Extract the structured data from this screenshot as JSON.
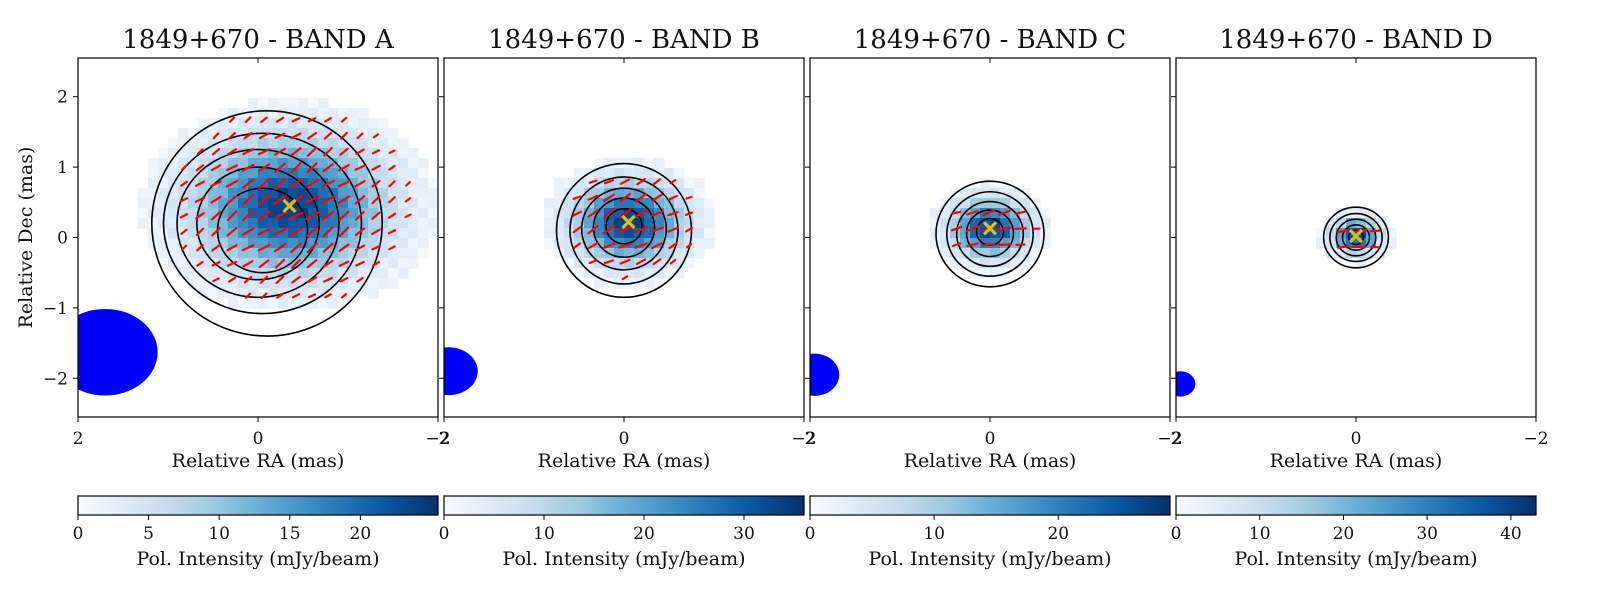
{
  "figure": {
    "colormap": [
      "#f7fbff",
      "#deebf7",
      "#c6dbef",
      "#9ecae1",
      "#6baed6",
      "#4292c6",
      "#2171b5",
      "#08519c",
      "#08306b"
    ],
    "contour_color": "#000000",
    "evpa_color": "#ff0000",
    "marker_color": "#d4c21a",
    "beam_color": "#0000ff"
  },
  "chart_data": [
    {
      "type": "heatmap",
      "title": "1849+670 - BAND A",
      "xlabel": "Relative RA (mas)",
      "ylabel": "Relative Dec (mas)",
      "xlim": [
        2.0,
        -2.0
      ],
      "ylim": [
        -2.55,
        2.55
      ],
      "xticks": [
        2,
        0,
        -2
      ],
      "xtick_labels": [
        "2",
        "0",
        "−2"
      ],
      "yticks": [
        2,
        1,
        0,
        -1,
        -2
      ],
      "ytick_labels": [
        "2",
        "1",
        "0",
        "−1",
        "−2"
      ],
      "colorbar": {
        "label": "Pol. Intensity (mJy/beam)",
        "range": [
          0,
          25.5
        ],
        "ticks": [
          0,
          5,
          10,
          15,
          20
        ],
        "tick_labels": [
          "0",
          "5",
          "10",
          "15",
          "20"
        ]
      },
      "peak": {
        "ra": -0.35,
        "dec": 0.45,
        "value_mjy": 24
      },
      "core_marker": {
        "ra": -0.35,
        "dec": 0.45
      },
      "emission_sigma": {
        "ra": 0.68,
        "dec": 0.62
      },
      "contours": [
        {
          "center": [
            -0.1,
            0.2
          ],
          "radius_ra": 1.28,
          "radius_dec": 1.6
        },
        {
          "center": [
            -0.05,
            0.2
          ],
          "radius_ra": 1.1,
          "radius_dec": 1.28
        },
        {
          "center": [
            0.0,
            0.2
          ],
          "radius_ra": 0.9,
          "radius_dec": 1.05
        },
        {
          "center": [
            0.0,
            0.2
          ],
          "radius_ra": 0.68,
          "radius_dec": 0.8
        },
        {
          "center": [
            -0.05,
            0.1
          ],
          "radius_ra": 0.5,
          "radius_dec": 0.6
        }
      ],
      "evpa_angle_deg": 35,
      "evpa_extent": {
        "ra": 1.35,
        "dec": 1.45
      },
      "beam": {
        "ra": 1.7,
        "dec": -1.63,
        "major": 1.23,
        "minor": 1.17
      }
    },
    {
      "type": "heatmap",
      "title": "1849+670 - BAND B",
      "xlabel": "Relative RA (mas)",
      "xlim": [
        2.0,
        -2.0
      ],
      "ylim": [
        -2.55,
        2.55
      ],
      "xticks": [
        2,
        0,
        -2
      ],
      "xtick_labels": [
        "2",
        "0",
        "−2"
      ],
      "colorbar": {
        "label": "Pol. Intensity (mJy/beam)",
        "range": [
          0,
          36
        ],
        "ticks": [
          0,
          10,
          20,
          30
        ],
        "tick_labels": [
          "0",
          "10",
          "20",
          "30"
        ]
      },
      "peak": {
        "ra": -0.05,
        "dec": 0.22,
        "value_mjy": 35
      },
      "core_marker": {
        "ra": -0.05,
        "dec": 0.22
      },
      "emission_sigma": {
        "ra": 0.4,
        "dec": 0.38
      },
      "contours": [
        {
          "center": [
            0.0,
            0.1
          ],
          "radius_ra": 0.75,
          "radius_dec": 0.95
        },
        {
          "center": [
            0.0,
            0.1
          ],
          "radius_ra": 0.6,
          "radius_dec": 0.76
        },
        {
          "center": [
            0.0,
            0.12
          ],
          "radius_ra": 0.47,
          "radius_dec": 0.58
        },
        {
          "center": [
            0.0,
            0.14
          ],
          "radius_ra": 0.34,
          "radius_dec": 0.42
        },
        {
          "center": [
            0.0,
            0.16
          ],
          "radius_ra": 0.2,
          "radius_dec": 0.25
        }
      ],
      "evpa_angle_deg": 28,
      "evpa_extent": {
        "ra": 0.75,
        "dec": 0.8
      },
      "beam": {
        "ra": 1.95,
        "dec": -1.9,
        "major": 0.68,
        "minor": 0.65
      }
    },
    {
      "type": "heatmap",
      "title": "1849+670 - BAND C",
      "xlabel": "Relative RA (mas)",
      "xlim": [
        2.0,
        -2.0
      ],
      "ylim": [
        -2.55,
        2.55
      ],
      "xticks": [
        2,
        0,
        -2
      ],
      "xtick_labels": [
        "2",
        "0",
        "−2"
      ],
      "colorbar": {
        "label": "Pol. Intensity (mJy/beam)",
        "range": [
          0,
          29
        ],
        "ticks": [
          0,
          10,
          20
        ],
        "tick_labels": [
          "0",
          "10",
          "20"
        ]
      },
      "peak": {
        "ra": 0.0,
        "dec": 0.13,
        "value_mjy": 28
      },
      "core_marker": {
        "ra": 0.0,
        "dec": 0.13
      },
      "emission_sigma": {
        "ra": 0.28,
        "dec": 0.27
      },
      "contours": [
        {
          "center": [
            0.0,
            0.05
          ],
          "radius_ra": 0.6,
          "radius_dec": 0.75
        },
        {
          "center": [
            0.0,
            0.05
          ],
          "radius_ra": 0.48,
          "radius_dec": 0.6
        },
        {
          "center": [
            0.0,
            0.05
          ],
          "radius_ra": 0.37,
          "radius_dec": 0.46
        },
        {
          "center": [
            0.0,
            0.06
          ],
          "radius_ra": 0.26,
          "radius_dec": 0.33
        },
        {
          "center": [
            0.0,
            0.08
          ],
          "radius_ra": 0.15,
          "radius_dec": 0.19
        }
      ],
      "evpa_angle_deg": 12,
      "evpa_extent": {
        "ra": 0.55,
        "dec": 0.45
      },
      "beam": {
        "ra": 1.95,
        "dec": -1.95,
        "major": 0.6,
        "minor": 0.55
      }
    },
    {
      "type": "heatmap",
      "title": "1849+670 - BAND D",
      "xlabel": "Relative RA (mas)",
      "xlim": [
        2.0,
        -2.0
      ],
      "ylim": [
        -2.55,
        2.55
      ],
      "xticks": [
        2,
        0,
        -2
      ],
      "xtick_labels": [
        "2",
        "0",
        "−2"
      ],
      "colorbar": {
        "label": "Pol. Intensity (mJy/beam)",
        "range": [
          0,
          43
        ],
        "ticks": [
          0,
          10,
          20,
          30,
          40
        ],
        "tick_labels": [
          "0",
          "10",
          "20",
          "30",
          "40"
        ]
      },
      "peak": {
        "ra": 0.0,
        "dec": 0.02,
        "value_mjy": 42
      },
      "core_marker": {
        "ra": 0.0,
        "dec": 0.02
      },
      "emission_sigma": {
        "ra": 0.17,
        "dec": 0.16
      },
      "contours": [
        {
          "center": [
            0.0,
            0.0
          ],
          "radius_ra": 0.36,
          "radius_dec": 0.43
        },
        {
          "center": [
            0.0,
            0.0
          ],
          "radius_ra": 0.29,
          "radius_dec": 0.34
        },
        {
          "center": [
            0.0,
            0.0
          ],
          "radius_ra": 0.22,
          "radius_dec": 0.26
        },
        {
          "center": [
            0.0,
            0.0
          ],
          "radius_ra": 0.15,
          "radius_dec": 0.18
        },
        {
          "center": [
            0.0,
            0.0
          ],
          "radius_ra": 0.08,
          "radius_dec": 0.1
        }
      ],
      "evpa_angle_deg": 5,
      "evpa_extent": {
        "ra": 0.32,
        "dec": 0.3
      },
      "beam": {
        "ra": 1.95,
        "dec": -2.08,
        "major": 0.36,
        "minor": 0.33
      }
    }
  ]
}
